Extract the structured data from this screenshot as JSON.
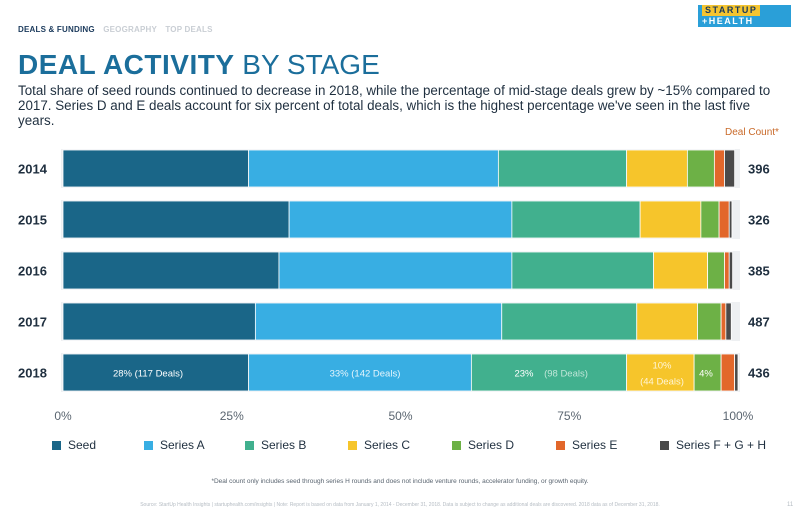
{
  "header": {
    "crumb_1": "DEALS & FUNDING",
    "crumb_2": "GEOGRAPHY",
    "crumb_3": "TOP DEALS",
    "logo_line1": "STARTUP",
    "logo_line2": "+HEALTH"
  },
  "title_bold": "DEAL ACTIVITY",
  "title_rest": "BY STAGE",
  "subtitle": "Total share of seed rounds continued to decrease in 2018, while the percentage of mid-stage deals grew by ~15% compared to 2017. Series D and E deals account for six percent of total deals, which is the highest percentage we've seen in the last five years.",
  "deal_count_header": "Deal Count*",
  "footnote": "*Deal count only includes seed through series H rounds and does not include venture rounds, accelerator funding, or growth equity.",
  "source": "Source: StartUp Health Insights | startuphealth.com/insights | Note: Report is based on data from January 1, 2014 - December 31, 2018. Data is subject to change as additional deals are discovered. 2018 data as of December 31, 2018.",
  "page_number": "11",
  "colors": {
    "seed": "#1a6688",
    "series_a": "#38aee3",
    "series_b": "#41b08e",
    "series_c": "#f6c52b",
    "series_d": "#6db146",
    "series_e": "#e2672b",
    "series_fgh": "#4a4a4a"
  },
  "chart_data": {
    "type": "bar",
    "orientation": "horizontal",
    "stacked": "percent",
    "title": "DEAL ACTIVITY BY STAGE",
    "categories": [
      "2014",
      "2015",
      "2016",
      "2017",
      "2018"
    ],
    "series": [
      {
        "name": "Seed",
        "values": [
          27.5,
          33.5,
          32,
          28.5,
          27.5
        ]
      },
      {
        "name": "Series A",
        "values": [
          37,
          33,
          34.5,
          36.5,
          33
        ]
      },
      {
        "name": "Series B",
        "values": [
          19,
          19,
          21,
          20,
          23
        ]
      },
      {
        "name": "Series C",
        "values": [
          9,
          9,
          8,
          9,
          10
        ]
      },
      {
        "name": "Series D",
        "values": [
          4,
          2.7,
          2.5,
          3.5,
          4
        ]
      },
      {
        "name": "Series E",
        "values": [
          1.5,
          1.5,
          0.7,
          0.7,
          2
        ]
      },
      {
        "name": "Series F + G + H",
        "values": [
          1.5,
          0.4,
          0.5,
          0.8,
          0.5
        ]
      }
    ],
    "deal_counts": [
      "396",
      "326",
      "385",
      "487",
      "436"
    ],
    "annotations_2018": [
      "28% (117 Deals)",
      "33% (142 Deals)",
      "23%",
      "(98 Deals)",
      "10%",
      "(44 Deals)",
      "4%"
    ],
    "x_ticks": [
      "0%",
      "25%",
      "50%",
      "75%",
      "100%"
    ],
    "xlim": [
      0,
      100
    ],
    "legend_position": "bottom"
  }
}
